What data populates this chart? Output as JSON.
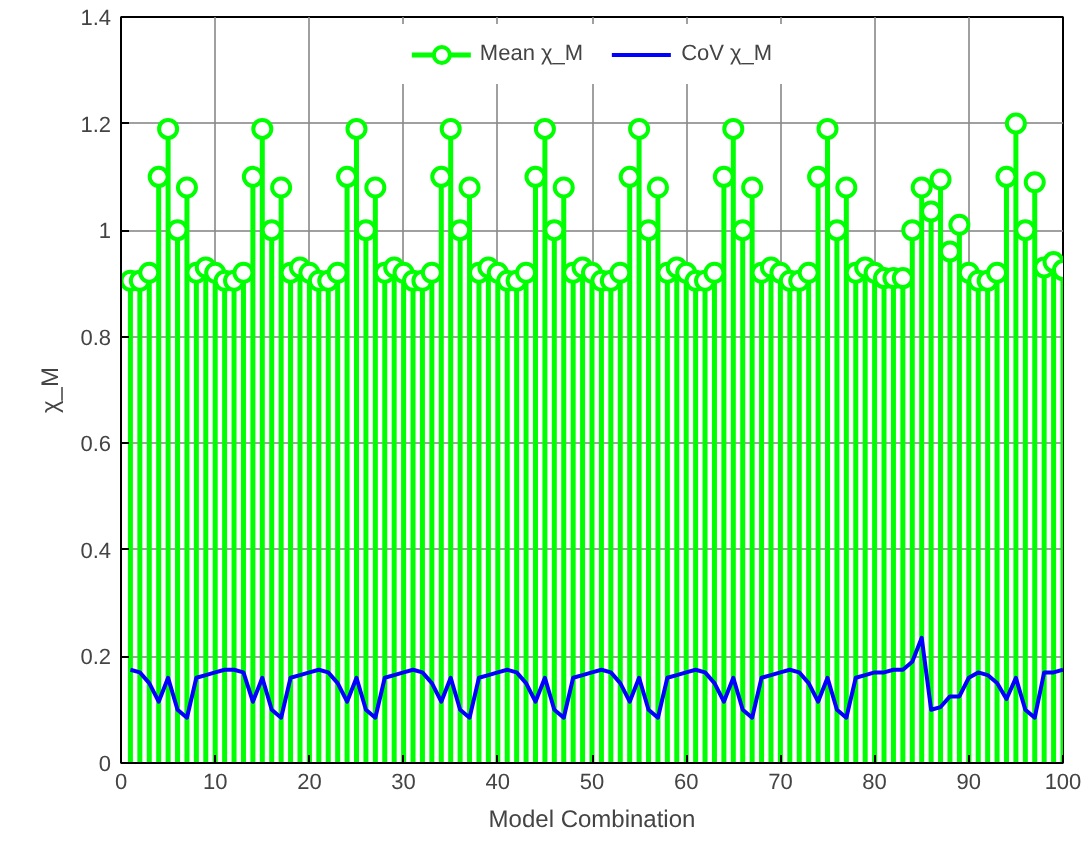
{
  "chart_data": {
    "type": "lollipop",
    "xlabel": "Model Combination",
    "ylabel": "χ_M",
    "x": [
      1,
      2,
      3,
      4,
      5,
      6,
      7,
      8,
      9,
      10,
      11,
      12,
      13,
      14,
      15,
      16,
      17,
      18,
      19,
      20,
      21,
      22,
      23,
      24,
      25,
      26,
      27,
      28,
      29,
      30,
      31,
      32,
      33,
      34,
      35,
      36,
      37,
      38,
      39,
      40,
      41,
      42,
      43,
      44,
      45,
      46,
      47,
      48,
      49,
      50,
      51,
      52,
      53,
      54,
      55,
      56,
      57,
      58,
      59,
      60,
      61,
      62,
      63,
      64,
      65,
      66,
      67,
      68,
      69,
      70,
      71,
      72,
      73,
      74,
      75,
      76,
      77,
      78,
      79,
      80,
      81,
      82,
      83,
      84,
      85,
      86,
      87,
      88,
      89,
      90,
      91,
      92,
      93,
      94,
      95,
      96,
      97,
      98,
      99,
      100
    ],
    "series": [
      {
        "name": "Mean χ_M",
        "color": "#00ff00",
        "marker": "circle",
        "values": [
          0.905,
          0.905,
          0.92,
          1.1,
          1.19,
          1.0,
          1.08,
          0.92,
          0.93,
          0.92,
          0.905,
          0.905,
          0.92,
          1.1,
          1.19,
          1.0,
          1.08,
          0.92,
          0.93,
          0.92,
          0.905,
          0.905,
          0.92,
          1.1,
          1.19,
          1.0,
          1.08,
          0.92,
          0.93,
          0.92,
          0.905,
          0.905,
          0.92,
          1.1,
          1.19,
          1.0,
          1.08,
          0.92,
          0.93,
          0.92,
          0.905,
          0.905,
          0.92,
          1.1,
          1.19,
          1.0,
          1.08,
          0.92,
          0.93,
          0.92,
          0.905,
          0.905,
          0.92,
          1.1,
          1.19,
          1.0,
          1.08,
          0.92,
          0.93,
          0.92,
          0.905,
          0.905,
          0.92,
          1.1,
          1.19,
          1.0,
          1.08,
          0.92,
          0.93,
          0.92,
          0.905,
          0.905,
          0.92,
          1.1,
          1.19,
          1.0,
          1.08,
          0.92,
          0.93,
          0.92,
          0.91,
          0.91,
          0.91,
          1.0,
          1.08,
          1.035,
          1.095,
          0.96,
          1.01,
          0.92,
          0.905,
          0.905,
          0.92,
          1.1,
          1.2,
          1.0,
          1.09,
          0.93,
          0.94,
          0.925
        ]
      },
      {
        "name": "CoV χ_M",
        "type": "line",
        "color": "#0000ff",
        "marker": "none",
        "values": [
          0.175,
          0.17,
          0.15,
          0.115,
          0.16,
          0.1,
          0.085,
          0.16,
          0.165,
          0.17,
          0.175,
          0.175,
          0.17,
          0.115,
          0.16,
          0.1,
          0.085,
          0.16,
          0.165,
          0.17,
          0.175,
          0.17,
          0.15,
          0.115,
          0.16,
          0.1,
          0.085,
          0.16,
          0.165,
          0.17,
          0.175,
          0.17,
          0.15,
          0.115,
          0.16,
          0.1,
          0.085,
          0.16,
          0.165,
          0.17,
          0.175,
          0.17,
          0.15,
          0.115,
          0.16,
          0.1,
          0.085,
          0.16,
          0.165,
          0.17,
          0.175,
          0.17,
          0.15,
          0.115,
          0.16,
          0.1,
          0.085,
          0.16,
          0.165,
          0.17,
          0.175,
          0.17,
          0.15,
          0.115,
          0.16,
          0.1,
          0.085,
          0.16,
          0.165,
          0.17,
          0.175,
          0.17,
          0.15,
          0.115,
          0.16,
          0.1,
          0.085,
          0.16,
          0.165,
          0.17,
          0.17,
          0.175,
          0.175,
          0.19,
          0.235,
          0.1,
          0.105,
          0.125,
          0.125,
          0.16,
          0.17,
          0.165,
          0.15,
          0.12,
          0.16,
          0.1,
          0.085,
          0.17,
          0.17,
          0.175
        ]
      }
    ],
    "xlim": [
      0,
      100
    ],
    "xticks": [
      0,
      10,
      20,
      30,
      40,
      50,
      60,
      70,
      80,
      90,
      100
    ],
    "ylim": [
      0,
      1.4
    ],
    "yticks": [
      0,
      0.2,
      0.4,
      0.6,
      0.8,
      1,
      1.2,
      1.4
    ],
    "grid": true,
    "legend": "top"
  }
}
